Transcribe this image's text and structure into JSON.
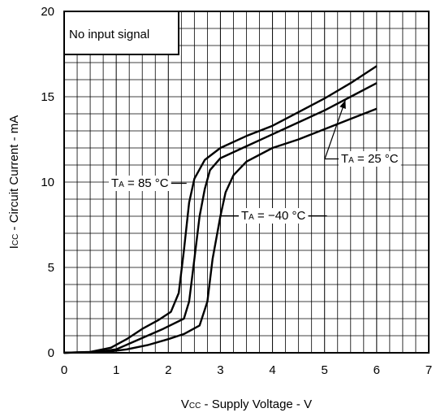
{
  "chart_data": {
    "type": "line",
    "xlabel": "Vcc - Supply Voltage - V",
    "xlabel_parts": {
      "main": "V",
      "sub": "CC",
      "rest": " - Supply Voltage - V"
    },
    "ylabel": "Icc - Circuit Current - mA",
    "ylabel_parts": {
      "main": "I",
      "sub": "CC",
      "rest": " - Circuit Current - mA"
    },
    "xlim": [
      0,
      7
    ],
    "ylim": [
      0,
      20
    ],
    "x_ticks": [
      "0",
      "1",
      "2",
      "3",
      "4",
      "5",
      "6",
      "7"
    ],
    "y_ticks": [
      "0",
      "5",
      "10",
      "15",
      "20"
    ],
    "grid": true,
    "condition_label": "No input signal",
    "series": [
      {
        "name": "TA = 85 °C",
        "label_parts": {
          "main": "T",
          "sub": "A",
          "rest": " = 85 °C"
        },
        "points": [
          [
            0,
            0
          ],
          [
            0.5,
            0.05
          ],
          [
            0.9,
            0.3
          ],
          [
            1.2,
            0.8
          ],
          [
            1.5,
            1.4
          ],
          [
            1.8,
            1.9
          ],
          [
            2.05,
            2.4
          ],
          [
            2.2,
            3.5
          ],
          [
            2.3,
            6.0
          ],
          [
            2.4,
            8.8
          ],
          [
            2.5,
            10.2
          ],
          [
            2.7,
            11.3
          ],
          [
            3.0,
            12.0
          ],
          [
            3.5,
            12.7
          ],
          [
            4.0,
            13.3
          ],
          [
            4.5,
            14.1
          ],
          [
            5.0,
            14.9
          ],
          [
            5.5,
            15.8
          ],
          [
            6.0,
            16.8
          ]
        ]
      },
      {
        "name": "TA = 25 °C",
        "label_parts": {
          "main": "T",
          "sub": "A",
          "rest": " = 25 °C"
        },
        "points": [
          [
            0,
            0
          ],
          [
            0.6,
            0.05
          ],
          [
            1.0,
            0.2
          ],
          [
            1.3,
            0.6
          ],
          [
            1.6,
            1.0
          ],
          [
            1.9,
            1.4
          ],
          [
            2.3,
            2.0
          ],
          [
            2.4,
            3.0
          ],
          [
            2.5,
            5.5
          ],
          [
            2.6,
            8.0
          ],
          [
            2.7,
            9.6
          ],
          [
            2.8,
            10.7
          ],
          [
            3.0,
            11.4
          ],
          [
            3.5,
            12.1
          ],
          [
            4.0,
            12.8
          ],
          [
            4.5,
            13.5
          ],
          [
            5.0,
            14.2
          ],
          [
            5.5,
            15.0
          ],
          [
            6.0,
            15.8
          ]
        ]
      },
      {
        "name": "TA = −40 °C",
        "label_parts": {
          "main": "T",
          "sub": "A",
          "rest": " = −40 °C"
        },
        "points": [
          [
            0,
            0
          ],
          [
            0.8,
            0.05
          ],
          [
            1.2,
            0.2
          ],
          [
            1.6,
            0.45
          ],
          [
            2.0,
            0.8
          ],
          [
            2.3,
            1.1
          ],
          [
            2.6,
            1.6
          ],
          [
            2.75,
            3.0
          ],
          [
            2.85,
            5.5
          ],
          [
            3.0,
            8.0
          ],
          [
            3.1,
            9.4
          ],
          [
            3.25,
            10.4
          ],
          [
            3.5,
            11.2
          ],
          [
            4.0,
            12.0
          ],
          [
            4.5,
            12.5
          ],
          [
            5.0,
            13.1
          ],
          [
            5.5,
            13.7
          ],
          [
            6.0,
            14.3
          ]
        ]
      }
    ]
  }
}
